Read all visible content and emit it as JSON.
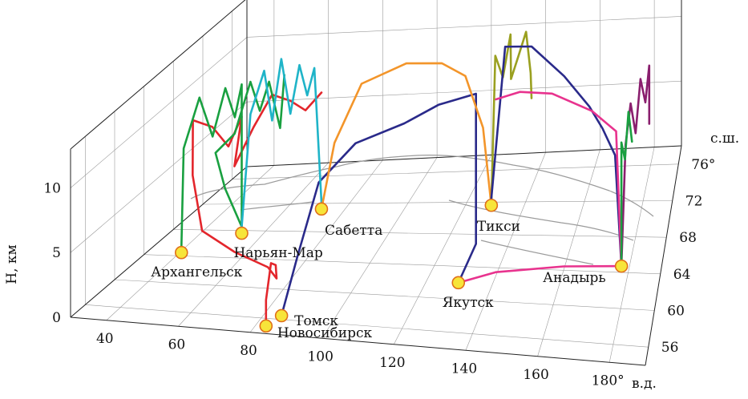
{
  "chart_data": {
    "type": "line3d",
    "title": "",
    "xlabel": "в.д.",
    "ylabel": "с.ш.",
    "zlabel": "H, км",
    "x_ticks": [
      40,
      60,
      80,
      100,
      120,
      140,
      160,
      180
    ],
    "x_tick_labels": [
      "40",
      "60",
      "80",
      "100",
      "120",
      "140",
      "160",
      "180°"
    ],
    "y_ticks": [
      56,
      60,
      64,
      68,
      72,
      76
    ],
    "y_tick_labels": [
      "56",
      "60",
      "64",
      "68",
      "72",
      "76°"
    ],
    "z_ticks": [
      0,
      5,
      10
    ],
    "z_tick_labels": [
      "0",
      "5",
      "10"
    ],
    "xlim": [
      30,
      190
    ],
    "ylim": [
      54,
      78
    ],
    "zlim": [
      0,
      13
    ],
    "grid": true,
    "cities": [
      {
        "name": "Архангельск",
        "lon": 40.5,
        "lat": 64.5
      },
      {
        "name": "Нарьян-Мар",
        "lon": 53,
        "lat": 67.6
      },
      {
        "name": "Сабетта",
        "lon": 72,
        "lat": 71.2
      },
      {
        "name": "Тикси",
        "lon": 128.8,
        "lat": 71.6
      },
      {
        "name": "Анадырь",
        "lon": 177.5,
        "lat": 64.7
      },
      {
        "name": "Якутск",
        "lon": 129.7,
        "lat": 62
      },
      {
        "name": "Томск",
        "lon": 85,
        "lat": 56.5
      },
      {
        "name": "Новосибирск",
        "lon": 82.9,
        "lat": 55
      }
    ],
    "series": [
      {
        "color": "#e3262c",
        "points": [
          [
            82.9,
            55,
            0
          ],
          [
            82.9,
            55,
            2
          ],
          [
            82,
            56.5,
            4
          ],
          [
            81,
            58,
            3
          ],
          [
            78,
            60,
            0.8
          ],
          [
            72,
            62,
            0.5
          ],
          [
            60,
            63,
            1
          ],
          [
            48,
            64,
            2
          ],
          [
            44,
            64.5,
            6
          ],
          [
            43,
            65,
            10
          ],
          [
            47,
            66,
            9
          ],
          [
            50,
            67,
            7
          ],
          [
            53,
            67.6,
            9
          ],
          [
            54,
            66,
            6
          ],
          [
            56,
            68,
            8
          ],
          [
            60,
            69,
            10
          ],
          [
            64,
            70,
            9
          ],
          [
            68,
            70.5,
            8
          ],
          [
            72,
            71.2,
            9
          ]
        ]
      },
      {
        "color": "#19a040",
        "points": [
          [
            40.5,
            64.5,
            0.5
          ],
          [
            41,
            64.6,
            8
          ],
          [
            44,
            65.5,
            11.5
          ],
          [
            46,
            66.5,
            8
          ],
          [
            49,
            67,
            11.5
          ],
          [
            51,
            67.5,
            9
          ],
          [
            53,
            67.6,
            11.5
          ],
          [
            53,
            67.6,
            0.5
          ],
          [
            50,
            66.5,
            4
          ],
          [
            48,
            66,
            7
          ],
          [
            52,
            67,
            8
          ],
          [
            55,
            68,
            11.5
          ],
          [
            57,
            68.5,
            9
          ],
          [
            59,
            69,
            11
          ],
          [
            61,
            69.8,
            7
          ],
          [
            62,
            70,
            11
          ]
        ]
      },
      {
        "color": "#2a2a8a",
        "points": [
          [
            85,
            56.5,
            0
          ],
          [
            88,
            57.5,
            4
          ],
          [
            92,
            59,
            9
          ],
          [
            100,
            61,
            11
          ],
          [
            112,
            63,
            11.5
          ],
          [
            120,
            65,
            11.8
          ],
          [
            130,
            66.5,
            11.8
          ],
          [
            130,
            66.5,
            0.2
          ],
          [
            129.7,
            62,
            0
          ]
        ]
      },
      {
        "color": "#1fb4c8",
        "points": [
          [
            53,
            67.6,
            0.5
          ],
          [
            55,
            68,
            9
          ],
          [
            58,
            68.7,
            12
          ],
          [
            60,
            69,
            8
          ],
          [
            62,
            69.5,
            12.5
          ],
          [
            64,
            70,
            8
          ],
          [
            66,
            70.5,
            11.5
          ],
          [
            68,
            70.8,
            9
          ],
          [
            70,
            71,
            11
          ],
          [
            72,
            71.2,
            0.5
          ]
        ]
      },
      {
        "color": "#f3952a",
        "points": [
          [
            72,
            71.2,
            0
          ],
          [
            76,
            71.4,
            5
          ],
          [
            85,
            71.5,
            9.5
          ],
          [
            100,
            71.6,
            11
          ],
          [
            112,
            71.6,
            11
          ],
          [
            120,
            71.6,
            10
          ],
          [
            126,
            71.6,
            6
          ],
          [
            128.8,
            71.6,
            0
          ]
        ]
      },
      {
        "color": "#9aa020",
        "points": [
          [
            128.8,
            71.6,
            0
          ],
          [
            129,
            72.5,
            11
          ],
          [
            131,
            73,
            9
          ],
          [
            133,
            73.5,
            12
          ],
          [
            135,
            72,
            9.5
          ],
          [
            137,
            72.5,
            11
          ],
          [
            139,
            73,
            12.5
          ],
          [
            140,
            73.5,
            9
          ],
          [
            142,
            72,
            8
          ]
        ]
      },
      {
        "color": "#2a2a8a",
        "points": [
          [
            128.8,
            71.6,
            0.5
          ],
          [
            133,
            72,
            12
          ],
          [
            142,
            72,
            12
          ],
          [
            155,
            70,
            11
          ],
          [
            165,
            68,
            10
          ],
          [
            170,
            67,
            9
          ],
          [
            175,
            65.5,
            8
          ],
          [
            177.5,
            64.7,
            0
          ]
        ]
      },
      {
        "color": "#e8338e",
        "points": [
          [
            129.7,
            62,
            0
          ],
          [
            140,
            63,
            0.3
          ],
          [
            160,
            64,
            0.3
          ],
          [
            177.5,
            64.7,
            0
          ],
          [
            175,
            66,
            9.5
          ],
          [
            165,
            69,
            9
          ],
          [
            150,
            71,
            9
          ],
          [
            138,
            72,
            8.5
          ],
          [
            130,
            71.9,
            8
          ]
        ]
      },
      {
        "color": "#8a1f6e",
        "points": [
          [
            177.5,
            64.7,
            0
          ],
          [
            178,
            66,
            8.5
          ],
          [
            179,
            67,
            11
          ],
          [
            180,
            68,
            8
          ],
          [
            181,
            69,
            11.5
          ],
          [
            182,
            70,
            9
          ],
          [
            183,
            70.5,
            11.5
          ],
          [
            183,
            70.5,
            7
          ]
        ]
      },
      {
        "color": "#19a040",
        "points": [
          [
            177.5,
            64.7,
            0
          ],
          [
            177,
            65.5,
            9
          ],
          [
            177.5,
            66.5,
            7
          ],
          [
            178,
            67.5,
            10
          ],
          [
            178.5,
            68.5,
            7
          ]
        ]
      }
    ]
  }
}
